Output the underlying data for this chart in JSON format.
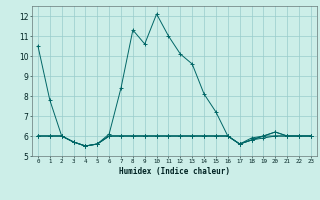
{
  "title": "",
  "xlabel": "Humidex (Indice chaleur)",
  "ylabel": "",
  "xlim": [
    -0.5,
    23.5
  ],
  "ylim": [
    5.0,
    12.5
  ],
  "yticks": [
    5,
    6,
    7,
    8,
    9,
    10,
    11,
    12
  ],
  "xticks": [
    0,
    1,
    2,
    3,
    4,
    5,
    6,
    7,
    8,
    9,
    10,
    11,
    12,
    13,
    14,
    15,
    16,
    17,
    18,
    19,
    20,
    21,
    22,
    23
  ],
  "bg_color": "#cceee8",
  "line_color": "#006666",
  "grid_color": "#99cccc",
  "series": [
    [
      10.5,
      7.8,
      6.0,
      5.7,
      5.5,
      5.6,
      6.1,
      8.4,
      11.3,
      10.6,
      12.1,
      11.0,
      10.1,
      9.6,
      8.1,
      7.2,
      6.0,
      5.6,
      5.8,
      6.0,
      6.2,
      6.0,
      6.0,
      6.0
    ],
    [
      6.0,
      6.0,
      6.0,
      5.7,
      5.5,
      5.6,
      6.0,
      6.0,
      6.0,
      6.0,
      6.0,
      6.0,
      6.0,
      6.0,
      6.0,
      6.0,
      6.0,
      5.6,
      5.8,
      6.0,
      6.2,
      6.0,
      6.0,
      6.0
    ],
    [
      6.0,
      6.0,
      6.0,
      5.7,
      5.5,
      5.6,
      6.0,
      6.0,
      6.0,
      6.0,
      6.0,
      6.0,
      6.0,
      6.0,
      6.0,
      6.0,
      6.0,
      5.6,
      5.8,
      5.9,
      6.0,
      6.0,
      6.0,
      6.0
    ],
    [
      6.0,
      6.0,
      6.0,
      5.7,
      5.5,
      5.6,
      6.0,
      6.0,
      6.0,
      6.0,
      6.0,
      6.0,
      6.0,
      6.0,
      6.0,
      6.0,
      6.0,
      5.6,
      5.9,
      6.0,
      6.0,
      6.0,
      6.0,
      6.0
    ]
  ]
}
